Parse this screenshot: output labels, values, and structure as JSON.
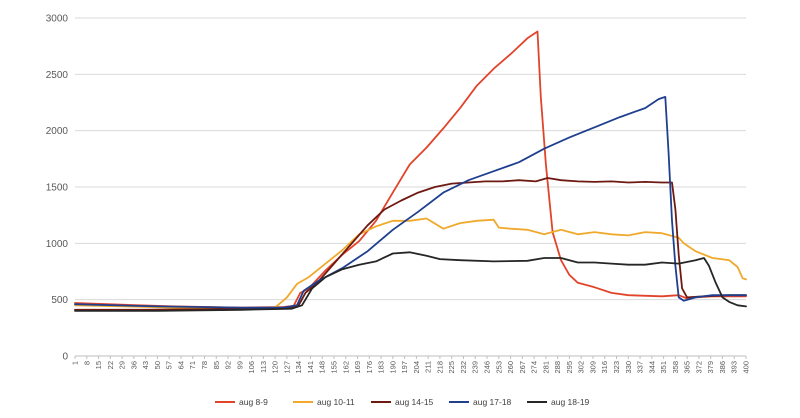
{
  "chart_data": {
    "type": "line",
    "title": "",
    "xlabel": "",
    "ylabel": "",
    "x_start": 1,
    "x_end": 400,
    "x_ticks": [
      1,
      8,
      15,
      22,
      29,
      36,
      43,
      50,
      57,
      64,
      71,
      78,
      85,
      92,
      99,
      106,
      113,
      120,
      127,
      134,
      141,
      148,
      155,
      162,
      169,
      176,
      183,
      190,
      197,
      204,
      211,
      218,
      225,
      232,
      239,
      246,
      253,
      260,
      267,
      274,
      281,
      288,
      295,
      302,
      309,
      316,
      323,
      330,
      337,
      344,
      351,
      358,
      365,
      372,
      379,
      386,
      393,
      400
    ],
    "ylim": [
      0,
      3000
    ],
    "y_ticks": [
      0,
      500,
      1000,
      1500,
      2000,
      2500,
      3000
    ],
    "y_tick_labels": [
      "0",
      "500",
      "1000",
      "1500",
      "2000",
      "2500",
      "3000"
    ],
    "grid": "horizontal",
    "legend_position": "bottom",
    "series": [
      {
        "name": "aug 8-9",
        "color": "#e2442b",
        "points": [
          [
            1,
            470
          ],
          [
            20,
            460
          ],
          [
            60,
            440
          ],
          [
            100,
            430
          ],
          [
            125,
            435
          ],
          [
            131,
            445
          ],
          [
            135,
            560
          ],
          [
            140,
            600
          ],
          [
            150,
            760
          ],
          [
            160,
            900
          ],
          [
            170,
            1020
          ],
          [
            175,
            1110
          ],
          [
            180,
            1200
          ],
          [
            190,
            1450
          ],
          [
            200,
            1700
          ],
          [
            210,
            1850
          ],
          [
            220,
            2020
          ],
          [
            230,
            2200
          ],
          [
            240,
            2400
          ],
          [
            250,
            2550
          ],
          [
            260,
            2680
          ],
          [
            270,
            2820
          ],
          [
            276,
            2880
          ],
          [
            278,
            2300
          ],
          [
            281,
            1700
          ],
          [
            285,
            1100
          ],
          [
            290,
            850
          ],
          [
            295,
            720
          ],
          [
            300,
            650
          ],
          [
            310,
            610
          ],
          [
            320,
            560
          ],
          [
            330,
            540
          ],
          [
            350,
            530
          ],
          [
            360,
            540
          ],
          [
            365,
            510
          ],
          [
            370,
            520
          ],
          [
            380,
            530
          ],
          [
            400,
            530
          ]
        ]
      },
      {
        "name": "aug 10-11",
        "color": "#f0a92c",
        "points": [
          [
            1,
            450
          ],
          [
            30,
            440
          ],
          [
            60,
            430
          ],
          [
            100,
            420
          ],
          [
            120,
            430
          ],
          [
            127,
            520
          ],
          [
            133,
            640
          ],
          [
            140,
            700
          ],
          [
            150,
            820
          ],
          [
            160,
            940
          ],
          [
            170,
            1080
          ],
          [
            180,
            1150
          ],
          [
            190,
            1200
          ],
          [
            200,
            1200
          ],
          [
            210,
            1220
          ],
          [
            220,
            1130
          ],
          [
            230,
            1180
          ],
          [
            240,
            1200
          ],
          [
            250,
            1210
          ],
          [
            253,
            1140
          ],
          [
            260,
            1130
          ],
          [
            270,
            1120
          ],
          [
            280,
            1080
          ],
          [
            290,
            1120
          ],
          [
            300,
            1080
          ],
          [
            310,
            1100
          ],
          [
            320,
            1080
          ],
          [
            330,
            1070
          ],
          [
            340,
            1100
          ],
          [
            350,
            1090
          ],
          [
            360,
            1050
          ],
          [
            363,
            1000
          ],
          [
            370,
            930
          ],
          [
            380,
            870
          ],
          [
            390,
            850
          ],
          [
            395,
            790
          ],
          [
            398,
            690
          ],
          [
            400,
            680
          ]
        ]
      },
      {
        "name": "aug 14-15",
        "color": "#6e1a12",
        "points": [
          [
            1,
            410
          ],
          [
            40,
            410
          ],
          [
            80,
            415
          ],
          [
            110,
            425
          ],
          [
            130,
            430
          ],
          [
            134,
            450
          ],
          [
            138,
            560
          ],
          [
            145,
            650
          ],
          [
            155,
            820
          ],
          [
            165,
            990
          ],
          [
            175,
            1160
          ],
          [
            185,
            1300
          ],
          [
            195,
            1380
          ],
          [
            205,
            1450
          ],
          [
            215,
            1500
          ],
          [
            225,
            1530
          ],
          [
            235,
            1540
          ],
          [
            245,
            1550
          ],
          [
            255,
            1550
          ],
          [
            265,
            1560
          ],
          [
            275,
            1550
          ],
          [
            282,
            1580
          ],
          [
            290,
            1560
          ],
          [
            300,
            1550
          ],
          [
            310,
            1545
          ],
          [
            320,
            1550
          ],
          [
            330,
            1540
          ],
          [
            340,
            1545
          ],
          [
            350,
            1540
          ],
          [
            356,
            1540
          ],
          [
            358,
            1300
          ],
          [
            360,
            900
          ],
          [
            362,
            600
          ],
          [
            365,
            520
          ],
          [
            375,
            530
          ],
          [
            390,
            540
          ],
          [
            400,
            540
          ]
        ]
      },
      {
        "name": "aug 17-18",
        "color": "#1f3f8f",
        "points": [
          [
            1,
            460
          ],
          [
            50,
            440
          ],
          [
            100,
            430
          ],
          [
            125,
            430
          ],
          [
            133,
            450
          ],
          [
            137,
            580
          ],
          [
            145,
            660
          ],
          [
            160,
            780
          ],
          [
            175,
            930
          ],
          [
            190,
            1120
          ],
          [
            205,
            1280
          ],
          [
            220,
            1450
          ],
          [
            235,
            1560
          ],
          [
            250,
            1640
          ],
          [
            265,
            1720
          ],
          [
            280,
            1840
          ],
          [
            295,
            1940
          ],
          [
            310,
            2030
          ],
          [
            325,
            2120
          ],
          [
            340,
            2200
          ],
          [
            348,
            2280
          ],
          [
            352,
            2300
          ],
          [
            354,
            1800
          ],
          [
            356,
            1200
          ],
          [
            358,
            800
          ],
          [
            360,
            520
          ],
          [
            363,
            490
          ],
          [
            370,
            520
          ],
          [
            380,
            540
          ],
          [
            400,
            540
          ]
        ]
      },
      {
        "name": "aug 18-19",
        "color": "#262626",
        "points": [
          [
            1,
            400
          ],
          [
            50,
            400
          ],
          [
            100,
            410
          ],
          [
            130,
            420
          ],
          [
            136,
            450
          ],
          [
            142,
            600
          ],
          [
            150,
            700
          ],
          [
            160,
            770
          ],
          [
            170,
            810
          ],
          [
            180,
            840
          ],
          [
            190,
            910
          ],
          [
            200,
            920
          ],
          [
            210,
            890
          ],
          [
            218,
            860
          ],
          [
            230,
            850
          ],
          [
            250,
            840
          ],
          [
            270,
            845
          ],
          [
            280,
            870
          ],
          [
            290,
            870
          ],
          [
            300,
            830
          ],
          [
            310,
            830
          ],
          [
            320,
            820
          ],
          [
            330,
            810
          ],
          [
            340,
            810
          ],
          [
            350,
            830
          ],
          [
            360,
            820
          ],
          [
            370,
            850
          ],
          [
            375,
            870
          ],
          [
            378,
            800
          ],
          [
            382,
            650
          ],
          [
            386,
            520
          ],
          [
            390,
            480
          ],
          [
            395,
            450
          ],
          [
            400,
            440
          ]
        ]
      }
    ]
  }
}
